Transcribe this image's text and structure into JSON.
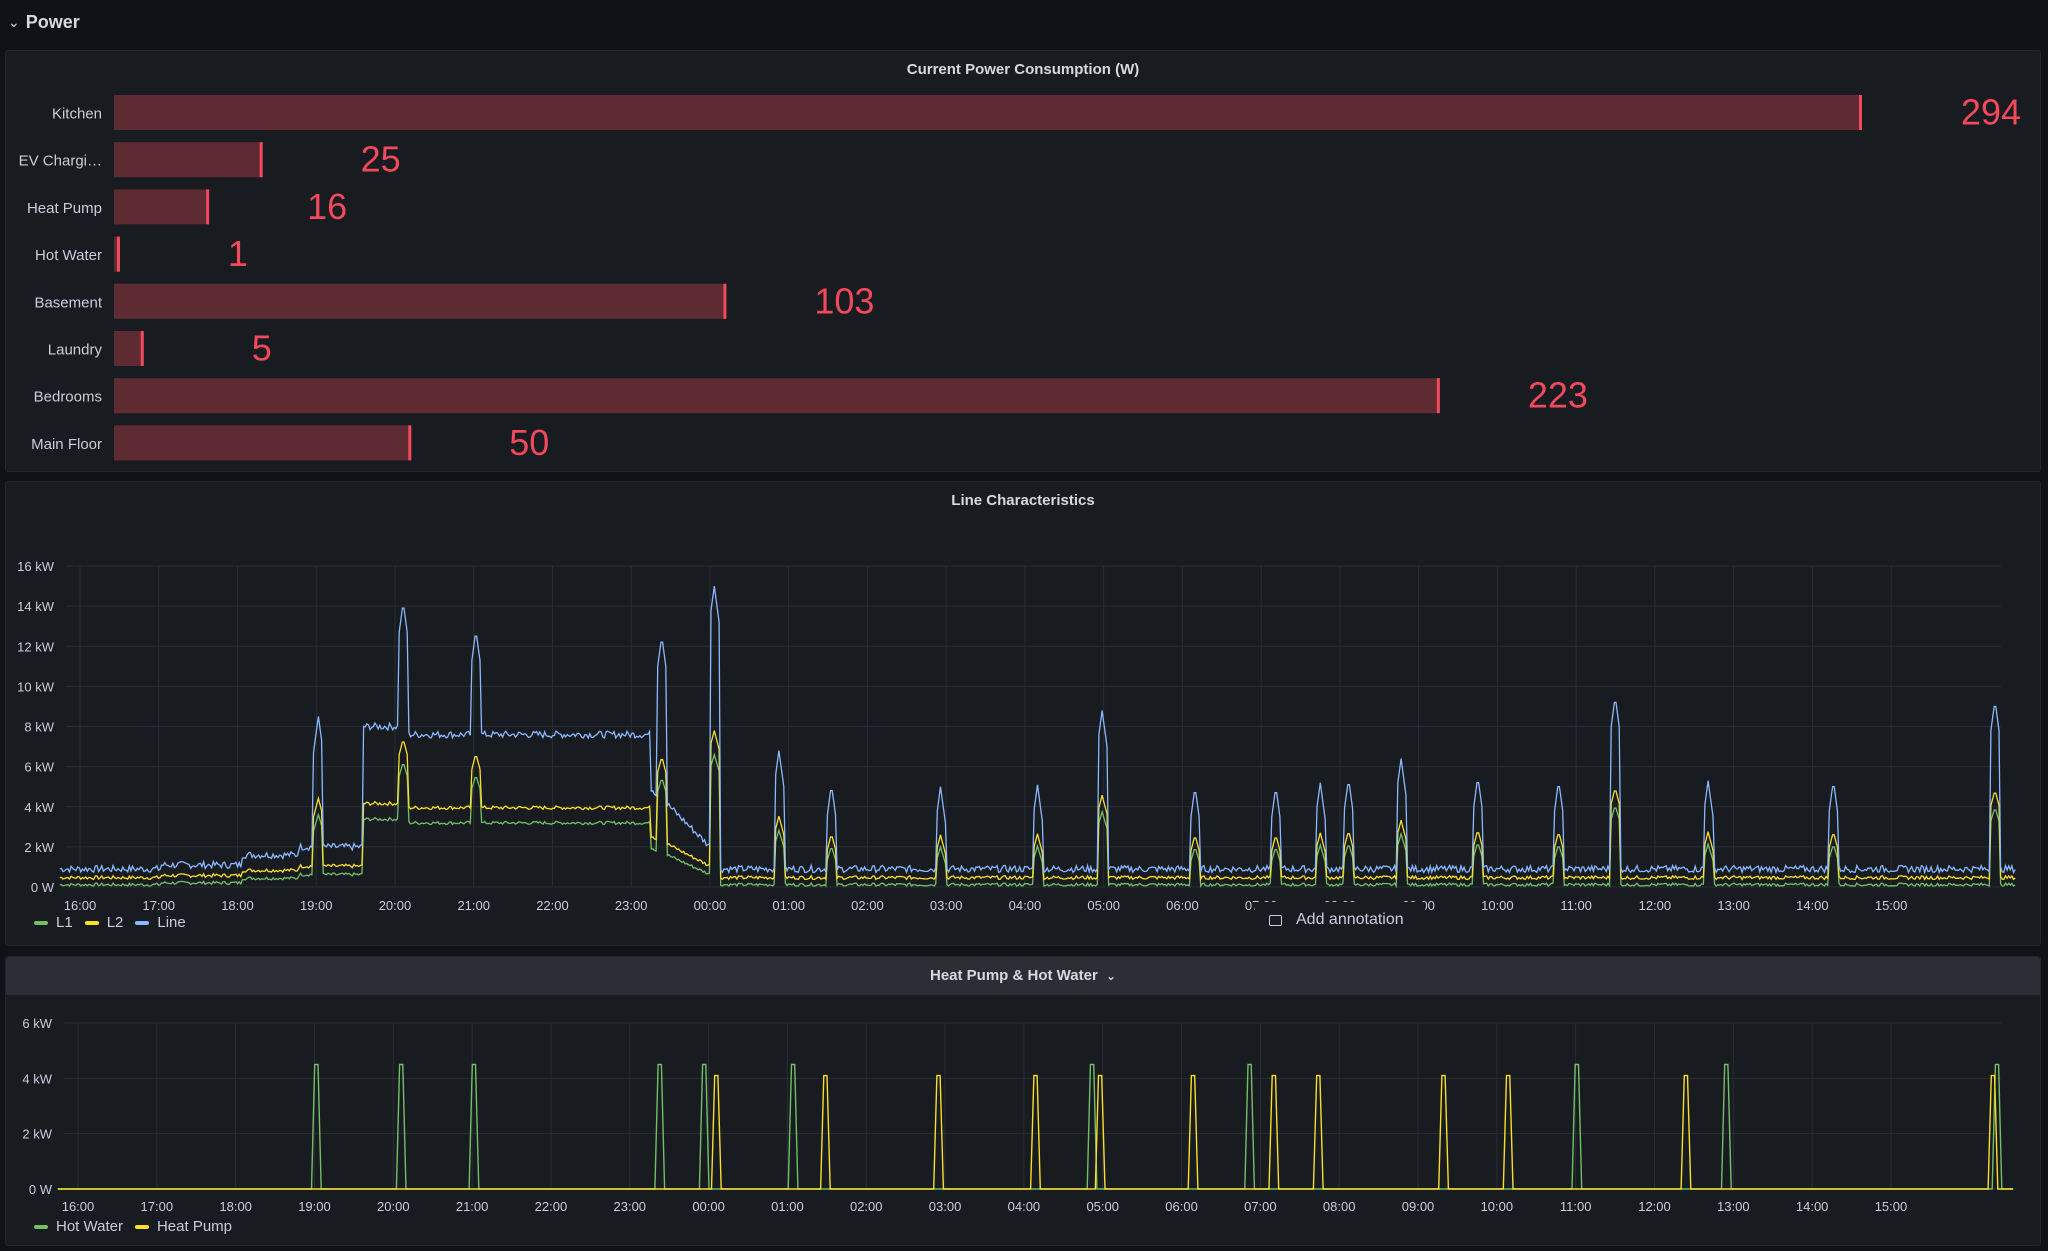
{
  "row": {
    "title": "Power"
  },
  "bar_panel": {
    "title": "Current Power Consumption (W)",
    "color": "#f2495c",
    "fill": "#5e2b33",
    "chart_data": {
      "type": "bar",
      "orientation": "horizontal",
      "categories": [
        "Kitchen",
        "EV Chargi…",
        "Heat Pump",
        "Hot Water",
        "Basement",
        "Laundry",
        "Bedrooms",
        "Main Floor"
      ],
      "values": [
        294,
        25,
        16,
        1,
        103,
        5,
        223,
        50
      ],
      "xlim": [
        0,
        294
      ]
    }
  },
  "line_panel": {
    "title": "Line Characteristics",
    "chart_data": {
      "type": "line",
      "ylim": [
        0,
        16
      ],
      "yticks": [
        "0 W",
        "2 kW",
        "4 kW",
        "6 kW",
        "8 kW",
        "10 kW",
        "12 kW",
        "14 kW",
        "16 kW"
      ],
      "xticks": [
        "16:00",
        "17:00",
        "18:00",
        "19:00",
        "20:00",
        "21:00",
        "22:00",
        "23:00",
        "00:00",
        "01:00",
        "02:00",
        "03:00",
        "04:00",
        "05:00",
        "06:00",
        "07:00",
        "08:00",
        "09:00",
        "10:00",
        "11:00",
        "12:00",
        "13:00",
        "14:00",
        "15:00"
      ],
      "series": [
        {
          "name": "L1",
          "color": "#73bf69"
        },
        {
          "name": "L2",
          "color": "#fade2a"
        },
        {
          "name": "Line",
          "color": "#8ab8ff"
        }
      ]
    },
    "annotation_label": "Add annotation"
  },
  "hp_panel": {
    "title": "Heat Pump & Hot Water",
    "chevron": "⌄",
    "chart_data": {
      "type": "line",
      "ylim": [
        0,
        6
      ],
      "yticks": [
        "0 W",
        "2 kW",
        "4 kW",
        "6 kW"
      ],
      "xticks": [
        "16:00",
        "17:00",
        "18:00",
        "19:00",
        "20:00",
        "21:00",
        "22:00",
        "23:00",
        "00:00",
        "01:00",
        "02:00",
        "03:00",
        "04:00",
        "05:00",
        "06:00",
        "07:00",
        "08:00",
        "09:00",
        "10:00",
        "11:00",
        "12:00",
        "13:00",
        "14:00",
        "15:00"
      ],
      "series": [
        {
          "name": "Hot Water",
          "color": "#73bf69",
          "spikes_at_hours": [
            2.95,
            4.0,
            4.9,
            7.2,
            7.75,
            8.85,
            12.55,
            14.5,
            18.55,
            20.4,
            23.75
          ]
        },
        {
          "name": "Heat Pump",
          "color": "#fade2a",
          "spikes_at_hours": [
            7.9,
            9.25,
            10.65,
            11.85,
            12.65,
            13.8,
            14.8,
            15.35,
            16.9,
            17.7,
            19.9,
            23.7
          ]
        }
      ]
    }
  }
}
